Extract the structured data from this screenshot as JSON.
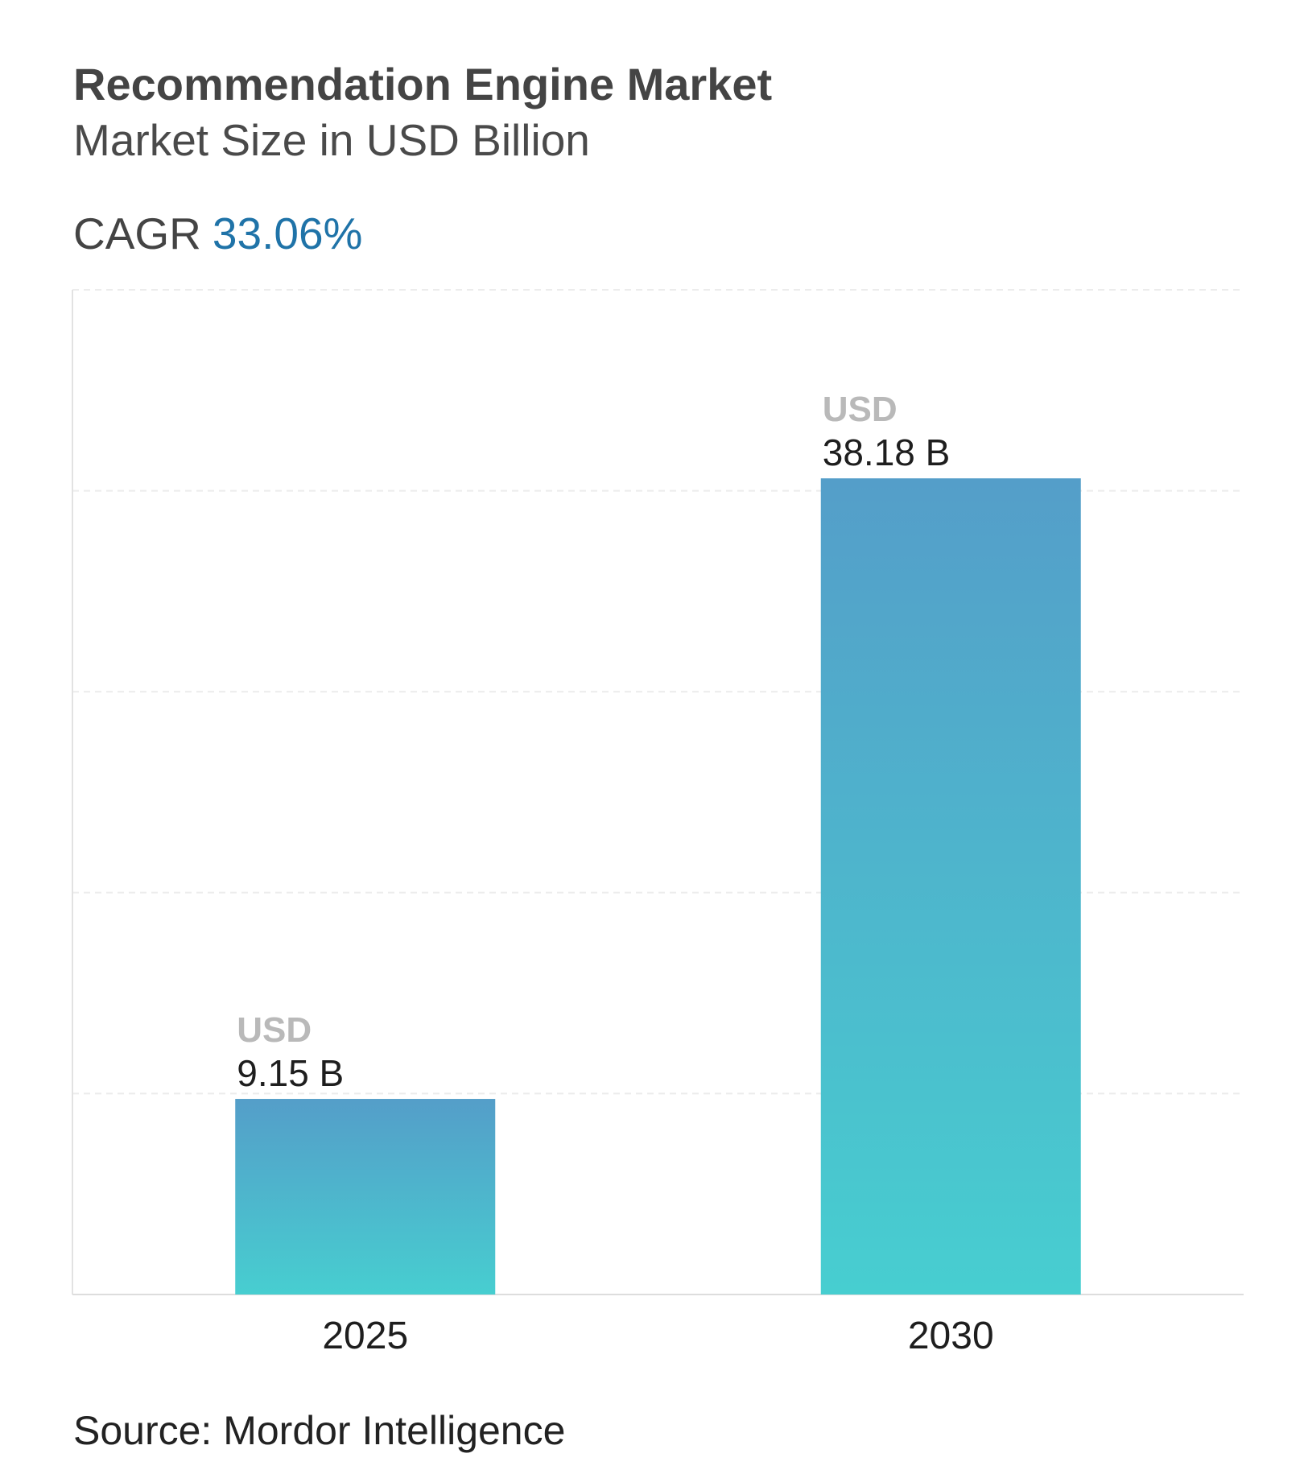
{
  "header": {
    "title": "Recommendation Engine Market",
    "subtitle": "Market Size in USD Billion",
    "cagr_label": "CAGR",
    "cagr_value": "33.06%"
  },
  "colors": {
    "accent": "#1f73a8",
    "bar_top": "#549ec9",
    "bar_bottom": "#47ced0"
  },
  "chart_data": {
    "type": "bar",
    "categories": [
      "2025",
      "2030"
    ],
    "values": [
      9.15,
      38.18
    ],
    "value_labels": [
      {
        "prefix": "USD",
        "value": "9.15 B"
      },
      {
        "prefix": "USD",
        "value": "38.18 B"
      }
    ],
    "ylim": [
      0,
      47
    ],
    "grid": true,
    "legend": "none"
  },
  "footer": {
    "source": "Source: Mordor Intelligence"
  }
}
